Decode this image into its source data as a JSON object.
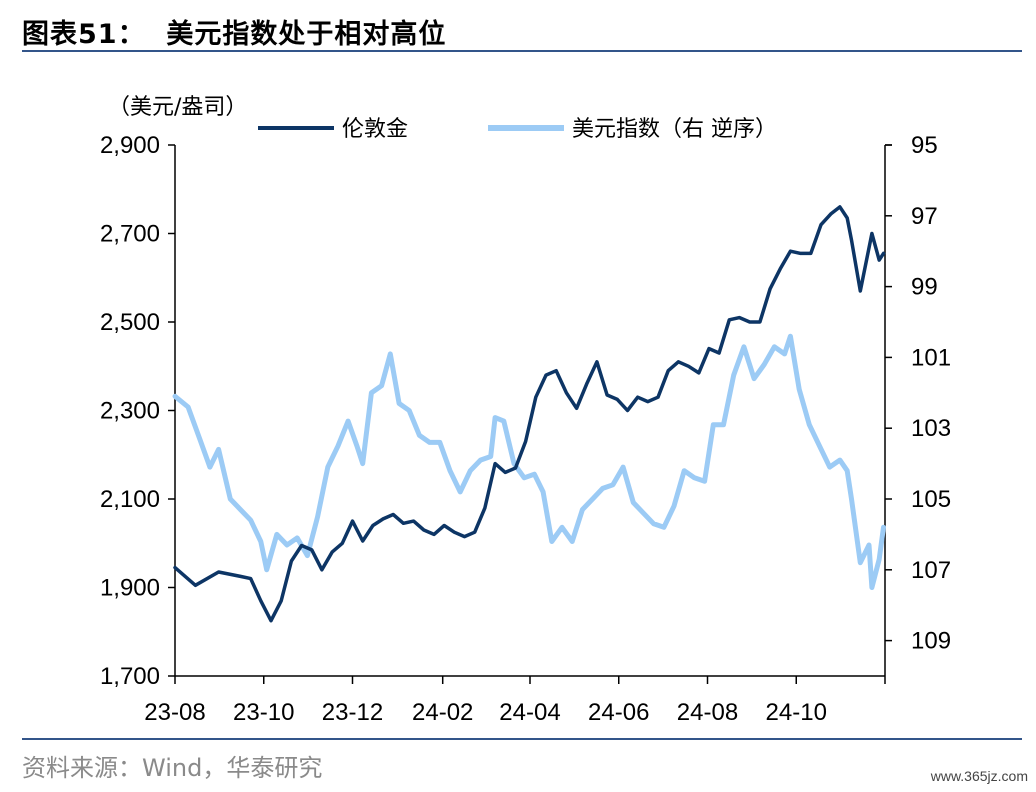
{
  "figure": {
    "label": "图表51：",
    "title": "美元指数处于相对高位"
  },
  "source_text": "资料来源：Wind，华泰研究",
  "watermark": "www.365jz.com",
  "chart_data": {
    "type": "line",
    "left_unit": "（美元/盎司）",
    "y_left": {
      "min": 1700,
      "max": 2900,
      "ticks": [
        1700,
        1900,
        2100,
        2300,
        2500,
        2700,
        2900
      ],
      "tick_labels": [
        "1,700",
        "1,900",
        "2,100",
        "2,300",
        "2,500",
        "2,700",
        "2,900"
      ]
    },
    "y_right": {
      "min": 95,
      "max": 110,
      "inverted": true,
      "ticks": [
        95,
        97,
        99,
        101,
        103,
        105,
        107,
        109
      ],
      "tick_labels": [
        "95",
        "97",
        "99",
        "101",
        "103",
        "105",
        "107",
        "109"
      ]
    },
    "x_ticks": [
      "23-08",
      "23-10",
      "23-12",
      "24-02",
      "24-04",
      "24-06",
      "24-08",
      "24-10"
    ],
    "legend_position": "top",
    "series": [
      {
        "name": "伦敦金",
        "axis": "left",
        "color": "#0d3565",
        "points": [
          [
            "23-08-01",
            1945
          ],
          [
            "23-08-15",
            1905
          ],
          [
            "23-08-31",
            1935
          ],
          [
            "23-09-15",
            1925
          ],
          [
            "23-09-22",
            1920
          ],
          [
            "23-09-29",
            1870
          ],
          [
            "23-10-06",
            1825
          ],
          [
            "23-10-13",
            1870
          ],
          [
            "23-10-20",
            1960
          ],
          [
            "23-10-27",
            1995
          ],
          [
            "23-11-03",
            1985
          ],
          [
            "23-11-10",
            1940
          ],
          [
            "23-11-17",
            1980
          ],
          [
            "23-11-24",
            2000
          ],
          [
            "23-12-01",
            2050
          ],
          [
            "23-12-08",
            2005
          ],
          [
            "23-12-15",
            2040
          ],
          [
            "23-12-22",
            2055
          ],
          [
            "23-12-29",
            2065
          ],
          [
            "24-01-05",
            2045
          ],
          [
            "24-01-12",
            2050
          ],
          [
            "24-01-19",
            2030
          ],
          [
            "24-01-26",
            2020
          ],
          [
            "24-02-02",
            2040
          ],
          [
            "24-02-09",
            2025
          ],
          [
            "24-02-16",
            2015
          ],
          [
            "24-02-23",
            2025
          ],
          [
            "24-03-01",
            2080
          ],
          [
            "24-03-08",
            2180
          ],
          [
            "24-03-15",
            2160
          ],
          [
            "24-03-22",
            2170
          ],
          [
            "24-03-29",
            2230
          ],
          [
            "24-04-05",
            2330
          ],
          [
            "24-04-12",
            2380
          ],
          [
            "24-04-19",
            2390
          ],
          [
            "24-04-26",
            2340
          ],
          [
            "24-05-03",
            2305
          ],
          [
            "24-05-10",
            2360
          ],
          [
            "24-05-17",
            2410
          ],
          [
            "24-05-24",
            2335
          ],
          [
            "24-05-31",
            2325
          ],
          [
            "24-06-07",
            2300
          ],
          [
            "24-06-14",
            2330
          ],
          [
            "24-06-21",
            2320
          ],
          [
            "24-06-28",
            2330
          ],
          [
            "24-07-05",
            2390
          ],
          [
            "24-07-12",
            2410
          ],
          [
            "24-07-19",
            2400
          ],
          [
            "24-07-26",
            2385
          ],
          [
            "24-08-02",
            2440
          ],
          [
            "24-08-09",
            2430
          ],
          [
            "24-08-16",
            2505
          ],
          [
            "24-08-23",
            2510
          ],
          [
            "24-08-30",
            2500
          ],
          [
            "24-09-06",
            2500
          ],
          [
            "24-09-13",
            2575
          ],
          [
            "24-09-20",
            2620
          ],
          [
            "24-09-27",
            2660
          ],
          [
            "24-10-04",
            2655
          ],
          [
            "24-10-11",
            2655
          ],
          [
            "24-10-18",
            2720
          ],
          [
            "24-10-25",
            2745
          ],
          [
            "24-10-31",
            2760
          ],
          [
            "24-11-05",
            2735
          ],
          [
            "24-11-08",
            2685
          ],
          [
            "24-11-14",
            2570
          ],
          [
            "24-11-22",
            2700
          ],
          [
            "24-11-27",
            2640
          ],
          [
            "24-11-30",
            2655
          ]
        ]
      },
      {
        "name": "美元指数（右 逆序）",
        "axis": "right",
        "color": "#9ccbf5",
        "points": [
          [
            "23-08-01",
            102.1
          ],
          [
            "23-08-10",
            102.4
          ],
          [
            "23-08-18",
            103.3
          ],
          [
            "23-08-25",
            104.1
          ],
          [
            "23-08-31",
            103.6
          ],
          [
            "23-09-08",
            105.0
          ],
          [
            "23-09-15",
            105.3
          ],
          [
            "23-09-22",
            105.6
          ],
          [
            "23-09-29",
            106.2
          ],
          [
            "23-10-03",
            107.0
          ],
          [
            "23-10-10",
            106.0
          ],
          [
            "23-10-17",
            106.3
          ],
          [
            "23-10-24",
            106.1
          ],
          [
            "23-10-31",
            106.6
          ],
          [
            "23-11-07",
            105.5
          ],
          [
            "23-11-14",
            104.1
          ],
          [
            "23-11-21",
            103.5
          ],
          [
            "23-11-28",
            102.8
          ],
          [
            "23-12-04",
            103.5
          ],
          [
            "23-12-08",
            104.0
          ],
          [
            "23-12-14",
            102.0
          ],
          [
            "23-12-21",
            101.8
          ],
          [
            "23-12-27",
            100.9
          ],
          [
            "24-01-02",
            102.3
          ],
          [
            "24-01-09",
            102.5
          ],
          [
            "24-01-16",
            103.2
          ],
          [
            "24-01-23",
            103.4
          ],
          [
            "24-01-30",
            103.4
          ],
          [
            "24-02-06",
            104.2
          ],
          [
            "24-02-13",
            104.8
          ],
          [
            "24-02-20",
            104.2
          ],
          [
            "24-02-27",
            103.9
          ],
          [
            "24-03-05",
            103.8
          ],
          [
            "24-03-08",
            102.7
          ],
          [
            "24-03-14",
            102.8
          ],
          [
            "24-03-21",
            104.0
          ],
          [
            "24-03-28",
            104.4
          ],
          [
            "24-04-04",
            104.3
          ],
          [
            "24-04-10",
            104.8
          ],
          [
            "24-04-16",
            106.2
          ],
          [
            "24-04-23",
            105.8
          ],
          [
            "24-04-30",
            106.2
          ],
          [
            "24-05-07",
            105.3
          ],
          [
            "24-05-14",
            105.0
          ],
          [
            "24-05-21",
            104.7
          ],
          [
            "24-05-28",
            104.6
          ],
          [
            "24-06-04",
            104.1
          ],
          [
            "24-06-11",
            105.1
          ],
          [
            "24-06-18",
            105.4
          ],
          [
            "24-06-25",
            105.7
          ],
          [
            "24-07-02",
            105.8
          ],
          [
            "24-07-09",
            105.2
          ],
          [
            "24-07-16",
            104.2
          ],
          [
            "24-07-23",
            104.4
          ],
          [
            "24-07-30",
            104.5
          ],
          [
            "24-08-05",
            102.9
          ],
          [
            "24-08-12",
            102.9
          ],
          [
            "24-08-19",
            101.5
          ],
          [
            "24-08-26",
            100.7
          ],
          [
            "24-09-02",
            101.6
          ],
          [
            "24-09-09",
            101.2
          ],
          [
            "24-09-16",
            100.7
          ],
          [
            "24-09-23",
            100.9
          ],
          [
            "24-09-27",
            100.4
          ],
          [
            "24-10-03",
            101.9
          ],
          [
            "24-10-10",
            102.9
          ],
          [
            "24-10-17",
            103.5
          ],
          [
            "24-10-24",
            104.1
          ],
          [
            "24-10-31",
            103.9
          ],
          [
            "24-11-05",
            104.2
          ],
          [
            "24-11-08",
            105.0
          ],
          [
            "24-11-14",
            106.8
          ],
          [
            "24-11-20",
            106.3
          ],
          [
            "24-11-22",
            107.5
          ],
          [
            "24-11-27",
            106.7
          ],
          [
            "24-11-30",
            105.8
          ]
        ]
      }
    ]
  }
}
